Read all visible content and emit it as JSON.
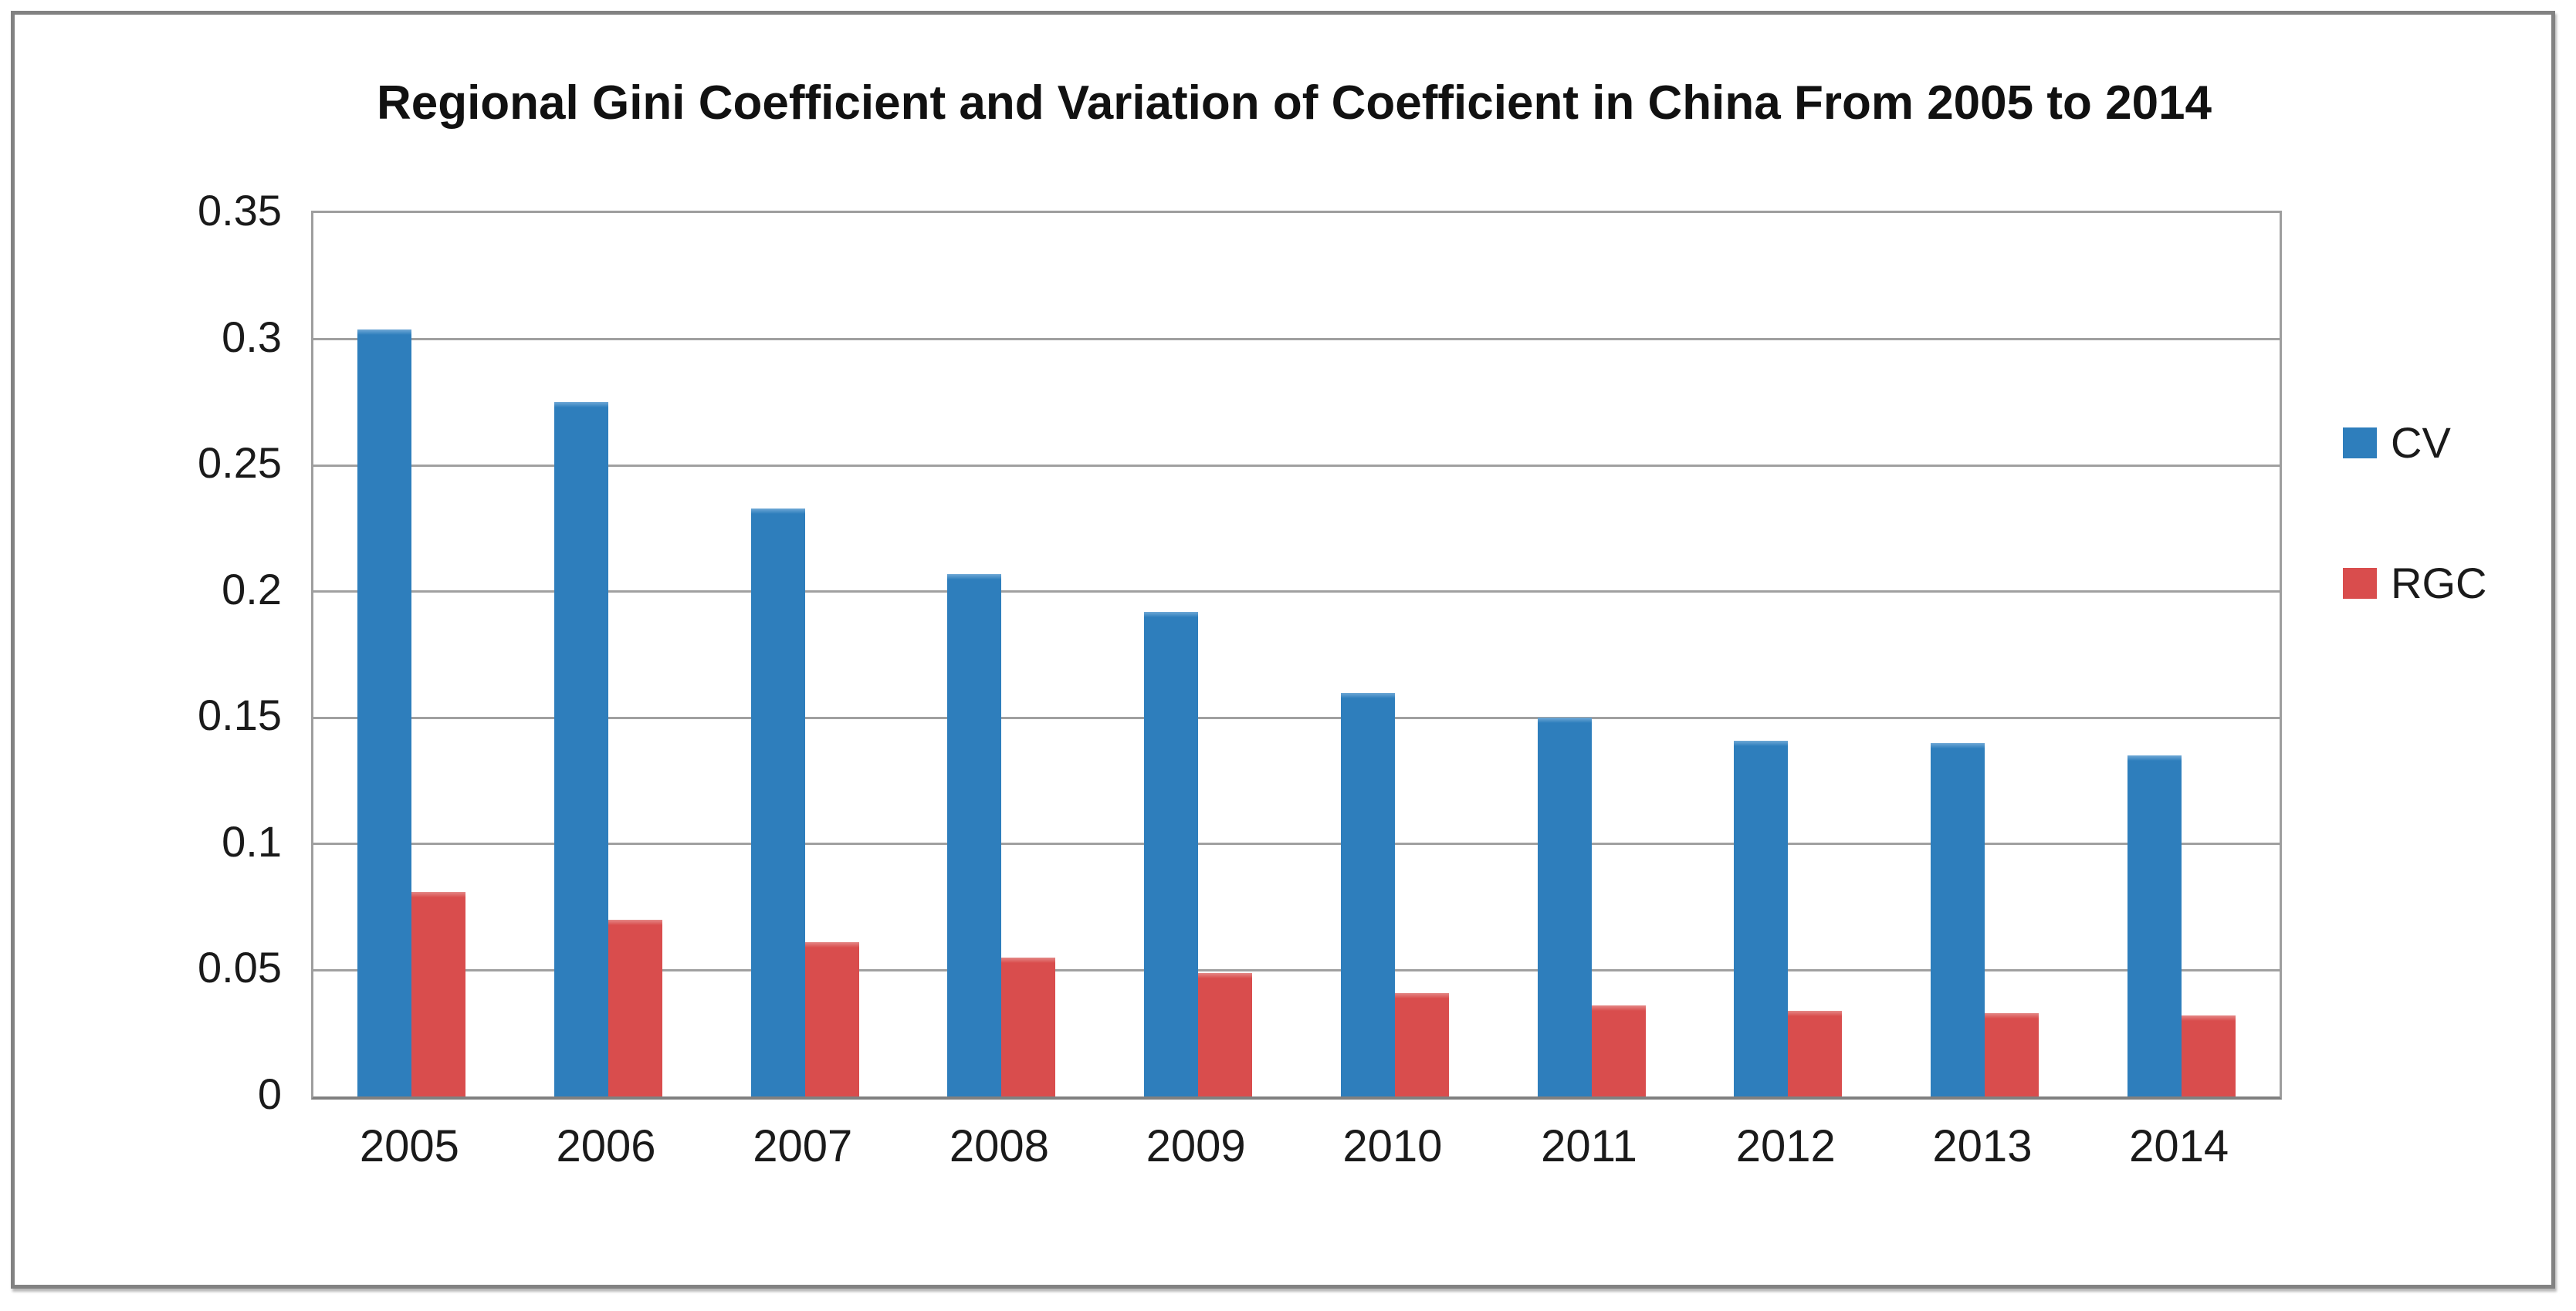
{
  "title": "Regional Gini Coefficient and Variation of Coefficient in China From 2005 to 2014",
  "colors": {
    "cv_bar": "#2e7ebc",
    "cv_bar_highlight": "#6fa8d6",
    "rgc_bar": "#d94d4d",
    "rgc_bar_highlight": "#e48886",
    "gridline": "#a0a0a0",
    "axis_line": "#808080",
    "frame_border": "#828282",
    "text": "#1a1a1a"
  },
  "chart_data": {
    "type": "bar",
    "title": "Regional Gini Coefficient and Variation of Coefficient in China From 2005 to 2014",
    "categories": [
      "2005",
      "2006",
      "2007",
      "2008",
      "2009",
      "2010",
      "2011",
      "2012",
      "2013",
      "2014"
    ],
    "series": [
      {
        "name": "CV",
        "color": "#2e7ebc",
        "highlight": "#6fa8d6",
        "values": [
          0.304,
          0.275,
          0.233,
          0.207,
          0.192,
          0.16,
          0.15,
          0.141,
          0.14,
          0.135
        ]
      },
      {
        "name": "RGC",
        "color": "#d94d4d",
        "highlight": "#e48886",
        "values": [
          0.081,
          0.07,
          0.061,
          0.055,
          0.049,
          0.041,
          0.036,
          0.034,
          0.033,
          0.032
        ]
      }
    ],
    "xlabel": "",
    "ylabel": "",
    "ylim": [
      0,
      0.35
    ],
    "ytick_interval": 0.05,
    "ytick_labels": [
      "0",
      "0.05",
      "0.1",
      "0.15",
      "0.2",
      "0.25",
      "0.3",
      "0.35"
    ],
    "grid": true,
    "legend_position": "right"
  },
  "legend": {
    "items": [
      {
        "label": "CV",
        "color": "#2e7ebc"
      },
      {
        "label": "RGC",
        "color": "#d94d4d"
      }
    ]
  }
}
